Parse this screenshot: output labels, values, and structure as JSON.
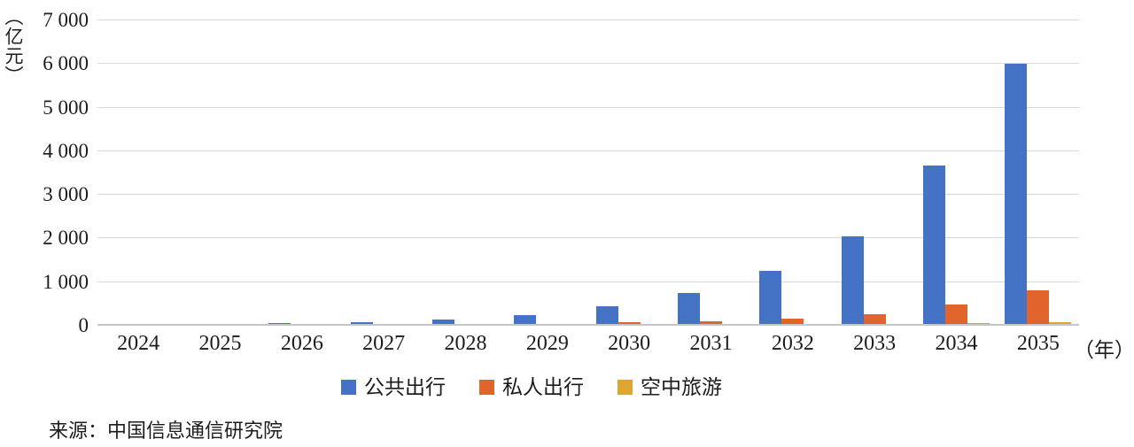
{
  "chart_data": {
    "type": "bar",
    "title": "",
    "unit_label": "（亿元）",
    "x_suffix_label": "（年）",
    "categories": [
      "2024",
      "2025",
      "2026",
      "2027",
      "2028",
      "2029",
      "2030",
      "2031",
      "2032",
      "2033",
      "2034",
      "2035"
    ],
    "series": [
      {
        "name": "公共出行",
        "color": "#4472C4",
        "values": [
          2,
          8,
          35,
          62,
          120,
          215,
          420,
          730,
          1230,
          2030,
          3650,
          5990
        ]
      },
      {
        "name": "私人出行",
        "color": "#E2642D",
        "values": [
          0,
          1,
          4,
          8,
          12,
          25,
          60,
          90,
          140,
          240,
          460,
          790
        ]
      },
      {
        "name": "空中旅游",
        "color": "#E0A430",
        "values": [
          0,
          0,
          1,
          2,
          4,
          8,
          12,
          18,
          25,
          30,
          35,
          55
        ]
      }
    ],
    "ylim": [
      0,
      7000
    ],
    "ytick_interval": 1000,
    "ytick_labels": [
      "0",
      "1 000",
      "2 000",
      "3 000",
      "4 000",
      "5 000",
      "6 000",
      "7 000"
    ],
    "grid": true,
    "legend_position": "bottom"
  },
  "source": {
    "text": "来源：中国信息通信研究院"
  }
}
